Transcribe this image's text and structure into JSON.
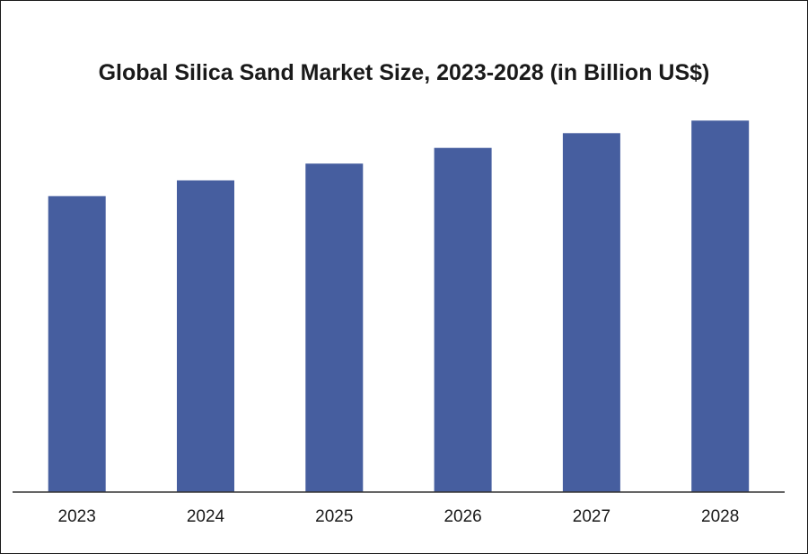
{
  "chart_data": {
    "type": "bar",
    "title": "Global Silica Sand Market Size, 2023-2028 (in Billion US$)",
    "xlabel": "",
    "ylabel": "",
    "categories": [
      "2023",
      "2024",
      "2025",
      "2026",
      "2027",
      "2028"
    ],
    "series": [
      {
        "values": [
          28.2,
          29.7,
          31.3,
          32.8,
          34.2,
          35.4
        ]
      }
    ],
    "ylim": [
      0,
      40
    ],
    "grid": false,
    "legend": "none",
    "bar_color": "#465e9f",
    "axis_color": "#333333",
    "text_color": "#1a1a1a"
  }
}
